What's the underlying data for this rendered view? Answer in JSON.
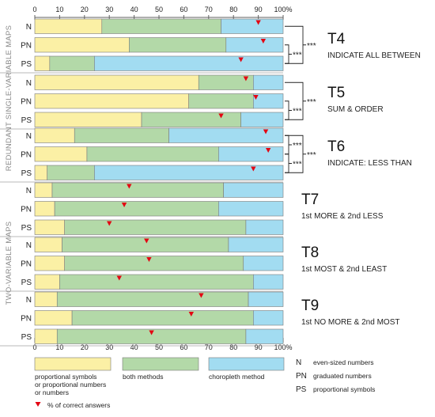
{
  "chart_data": {
    "type": "bar",
    "orientation": "horizontal",
    "stacked": true,
    "percent_scale": true,
    "xlim": [
      0,
      100
    ],
    "x_ticks": [
      "0",
      "10",
      "20",
      "30",
      "40",
      "50",
      "60",
      "70",
      "80",
      "90",
      "100%"
    ],
    "grid": false,
    "legend_position": "bottom",
    "colors": {
      "proportional": "#fbf0a5",
      "both": "#b3d9a8",
      "choropleth": "#a2dcf1",
      "marker": "#e30613",
      "axis": "#606060"
    },
    "series": [
      {
        "key": "proportional",
        "name": "proportional symbols or proportional numbers or numbers"
      },
      {
        "key": "both",
        "name": "both methods"
      },
      {
        "key": "choropleth",
        "name": "choropleth method"
      }
    ],
    "marker_series": "% of correct answers",
    "groups": [
      {
        "label": "REDUNDANT SINGLE-VARIABLE MAPS",
        "tasks": [
          {
            "task": "T4",
            "subtitle": "INDICATE ALL BETWEEN",
            "rows": [
              {
                "label": "N",
                "proportional": 27,
                "both": 48,
                "choropleth": 25,
                "correct": 90
              },
              {
                "label": "PN",
                "proportional": 38,
                "both": 39,
                "choropleth": 23,
                "correct": 92
              },
              {
                "label": "PS",
                "proportional": 6,
                "both": 18,
                "choropleth": 76,
                "correct": 83
              }
            ],
            "significance": [
              {
                "between": [
                  "N",
                  "PS"
                ],
                "text": "***"
              },
              {
                "between": [
                  "PN",
                  "PS"
                ],
                "text": "***"
              }
            ]
          },
          {
            "task": "T5",
            "subtitle": "SUM & ORDER",
            "rows": [
              {
                "label": "N",
                "proportional": 66,
                "both": 22,
                "choropleth": 12,
                "correct": 85
              },
              {
                "label": "PN",
                "proportional": 62,
                "both": 26,
                "choropleth": 12,
                "correct": 89
              },
              {
                "label": "PS",
                "proportional": 43,
                "both": 40,
                "choropleth": 17,
                "correct": 75
              }
            ],
            "significance": [
              {
                "between": [
                  "N",
                  "PS"
                ],
                "text": "***"
              },
              {
                "between": [
                  "PN",
                  "PS"
                ],
                "text": "***"
              }
            ]
          },
          {
            "task": "T6",
            "subtitle": "INDICATE: LESS THAN",
            "rows": [
              {
                "label": "N",
                "proportional": 16,
                "both": 38,
                "choropleth": 46,
                "correct": 93
              },
              {
                "label": "PN",
                "proportional": 21,
                "both": 53,
                "choropleth": 26,
                "correct": 94
              },
              {
                "label": "PS",
                "proportional": 5,
                "both": 19,
                "choropleth": 76,
                "correct": 88
              }
            ],
            "significance": [
              {
                "between": [
                  "N",
                  "PN"
                ],
                "text": "***"
              },
              {
                "between": [
                  "PN",
                  "PS"
                ],
                "text": "***"
              },
              {
                "between": [
                  "N",
                  "PS"
                ],
                "text": "***"
              }
            ]
          }
        ]
      },
      {
        "label": "TWO-VARIABLE MAPS",
        "tasks": [
          {
            "task": "T7",
            "subtitle": "1st MORE & 2nd LESS",
            "rows": [
              {
                "label": "N",
                "proportional": 7,
                "both": 69,
                "choropleth": 24,
                "correct": 38
              },
              {
                "label": "PN",
                "proportional": 8,
                "both": 66,
                "choropleth": 26,
                "correct": 36
              },
              {
                "label": "PS",
                "proportional": 12,
                "both": 73,
                "choropleth": 15,
                "correct": 30
              }
            ],
            "significance": []
          },
          {
            "task": "T8",
            "subtitle": "1st MOST & 2nd LEAST",
            "rows": [
              {
                "label": "N",
                "proportional": 11,
                "both": 67,
                "choropleth": 22,
                "correct": 45
              },
              {
                "label": "PN",
                "proportional": 12,
                "both": 72,
                "choropleth": 16,
                "correct": 46
              },
              {
                "label": "PS",
                "proportional": 10,
                "both": 78,
                "choropleth": 12,
                "correct": 34
              }
            ],
            "significance": []
          },
          {
            "task": "T9",
            "subtitle": "1st NO MORE & 2nd MOST",
            "rows": [
              {
                "label": "N",
                "proportional": 9,
                "both": 77,
                "choropleth": 14,
                "correct": 67
              },
              {
                "label": "PN",
                "proportional": 15,
                "both": 73,
                "choropleth": 12,
                "correct": 63
              },
              {
                "label": "PS",
                "proportional": 9,
                "both": 76,
                "choropleth": 15,
                "correct": 47
              }
            ],
            "significance": []
          }
        ]
      }
    ],
    "abbreviations": [
      {
        "abbr": "N",
        "meaning": "even-sized numbers"
      },
      {
        "abbr": "PN",
        "meaning": "graduated numbers"
      },
      {
        "abbr": "PS",
        "meaning": "proportional symbols"
      }
    ]
  }
}
